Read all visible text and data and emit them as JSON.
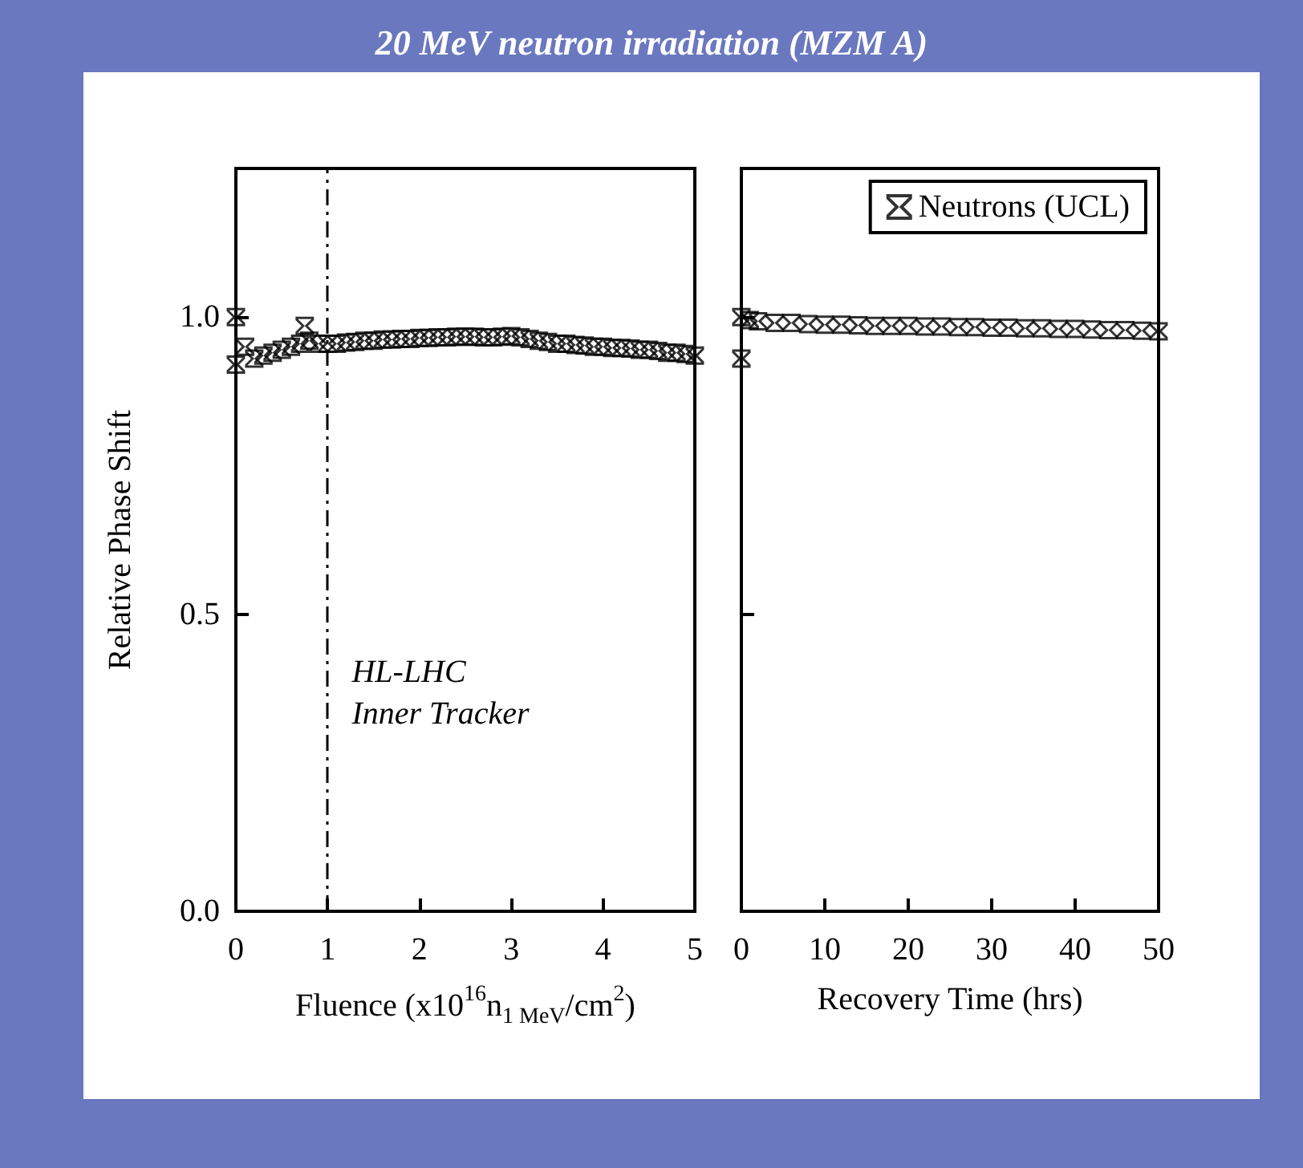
{
  "chart_data": [
    {
      "type": "scatter",
      "title": "20 MeV neutron irradiation (MZM A)",
      "xlabel": "Fluence (x10$^{16}$n$_{1 MeV}$/cm$^{2}$)",
      "ylabel": "Relative Phase Shift",
      "grid": false,
      "legend": false,
      "xlim": [
        0,
        5
      ],
      "xticks": [
        0,
        1,
        2,
        3,
        4,
        5
      ],
      "ylim": [
        0,
        1.25
      ],
      "yticks": [
        {
          "value": 0,
          "label": "0.0"
        },
        {
          "value": 0.5,
          "label": "0.5"
        },
        {
          "value": 1,
          "label": "1.0"
        }
      ],
      "ref_lines": [
        {
          "axis": "x",
          "value": 1,
          "label": "HL-LHC\nInner Tracker",
          "line_style": "dashed"
        }
      ],
      "series": [
        {
          "color": "#000000",
          "x": [
            0,
            0,
            0.1,
            0.2,
            0.3,
            0.4,
            0.5,
            0.6,
            0.7,
            0.75,
            0.8,
            0.9,
            1.0,
            1.1,
            1.2,
            1.3,
            1.4,
            1.5,
            1.6,
            1.7,
            1.8,
            1.9,
            2.0,
            2.1,
            2.2,
            2.3,
            2.4,
            2.5,
            2.6,
            2.7,
            2.8,
            2.9,
            3.0,
            3.1,
            3.2,
            3.3,
            3.4,
            3.5,
            3.6,
            3.7,
            3.8,
            3.9,
            4.0,
            4.1,
            4.2,
            4.3,
            4.4,
            4.5,
            4.6,
            4.7,
            4.8,
            4.9,
            5.0
          ],
          "values": [
            1.0,
            0.92,
            0.95,
            0.93,
            0.935,
            0.94,
            0.945,
            0.95,
            0.955,
            0.985,
            0.96,
            0.955,
            0.955,
            0.955,
            0.957,
            0.958,
            0.96,
            0.96,
            0.962,
            0.962,
            0.963,
            0.963,
            0.965,
            0.965,
            0.966,
            0.966,
            0.967,
            0.967,
            0.967,
            0.966,
            0.966,
            0.967,
            0.968,
            0.966,
            0.963,
            0.96,
            0.958,
            0.955,
            0.955,
            0.953,
            0.952,
            0.95,
            0.95,
            0.948,
            0.948,
            0.947,
            0.945,
            0.945,
            0.943,
            0.94,
            0.94,
            0.938,
            0.935
          ]
        }
      ]
    },
    {
      "type": "scatter",
      "xlabel": "Recovery Time (hrs)",
      "grid": false,
      "legend": "top right",
      "tick_labels": "x",
      "xlim": [
        0,
        50
      ],
      "xticks": [
        0,
        10,
        20,
        30,
        40,
        50
      ],
      "ylim": [
        0,
        1.25
      ],
      "yticks": [
        0,
        0.5,
        1
      ],
      "series": [
        {
          "name": "Neutrons (UCL)",
          "color": "#000000",
          "x": [
            0,
            0,
            1,
            2,
            4,
            6,
            8,
            10,
            12,
            14,
            16,
            18,
            20,
            22,
            24,
            26,
            28,
            30,
            32,
            34,
            36,
            38,
            40,
            42,
            44,
            46,
            48,
            50
          ],
          "values": [
            1.0,
            0.93,
            0.995,
            0.993,
            0.99,
            0.99,
            0.988,
            0.987,
            0.987,
            0.986,
            0.985,
            0.985,
            0.985,
            0.984,
            0.984,
            0.983,
            0.983,
            0.982,
            0.982,
            0.981,
            0.981,
            0.98,
            0.98,
            0.979,
            0.978,
            0.978,
            0.977,
            0.976
          ]
        }
      ]
    }
  ]
}
